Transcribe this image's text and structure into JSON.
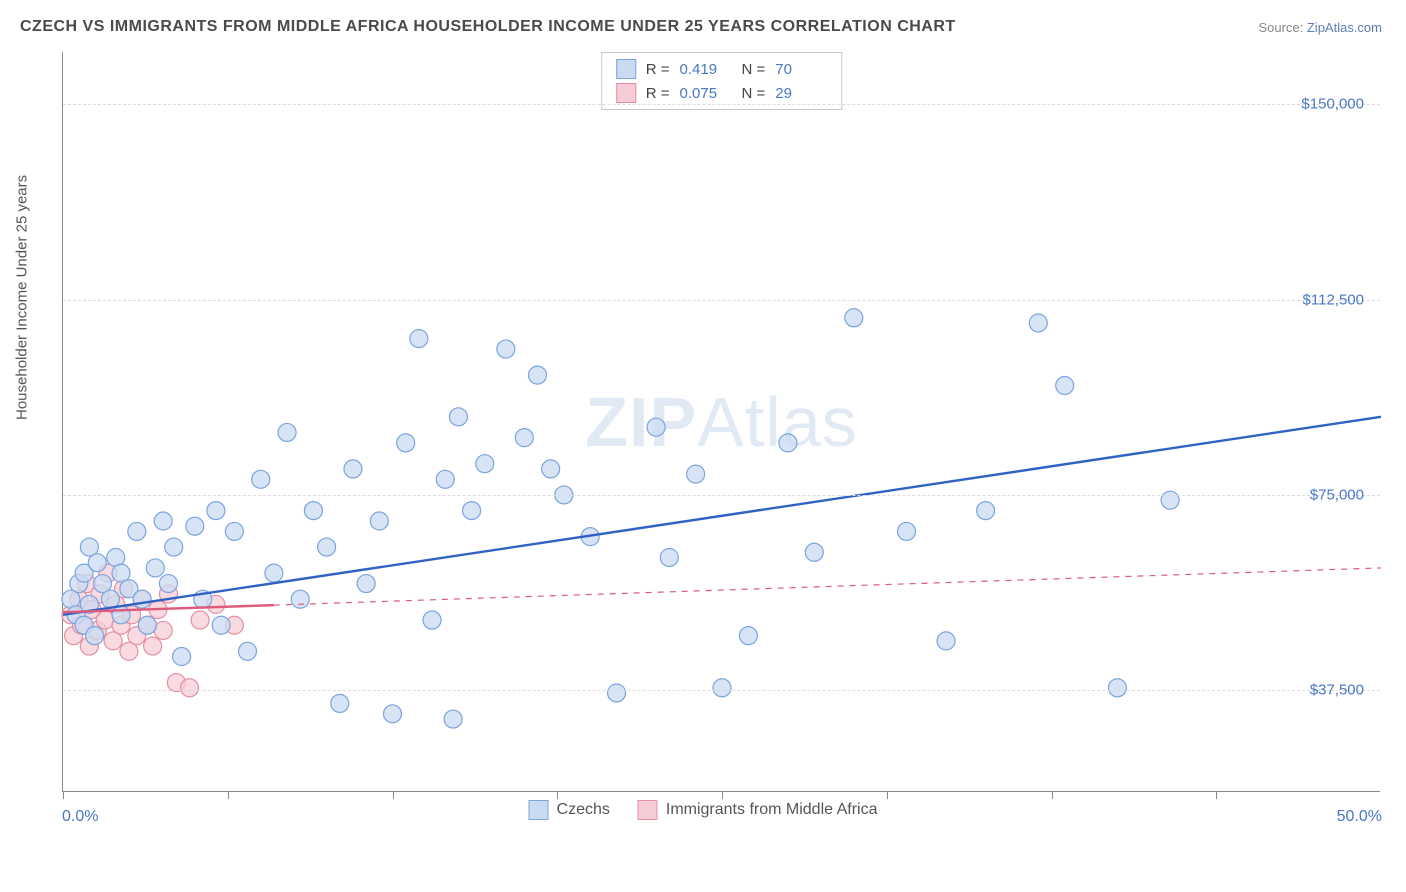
{
  "title": "CZECH VS IMMIGRANTS FROM MIDDLE AFRICA HOUSEHOLDER INCOME UNDER 25 YEARS CORRELATION CHART",
  "source_prefix": "Source: ",
  "source_name": "ZipAtlas.com",
  "watermark_a": "ZIP",
  "watermark_b": "Atlas",
  "yaxis_label": "Householder Income Under 25 years",
  "chart": {
    "type": "scatter",
    "background_color": "#ffffff",
    "grid_color": "#dcdcdc",
    "xlim": [
      0,
      50
    ],
    "ylim": [
      18000,
      160000
    ],
    "xtick_positions": [
      0,
      6.25,
      12.5,
      18.75,
      25,
      31.25,
      37.5,
      43.75
    ],
    "xlabel_min": "0.0%",
    "xlabel_max": "50.0%",
    "yticks": [
      {
        "v": 37500,
        "label": "$37,500"
      },
      {
        "v": 75000,
        "label": "$75,000"
      },
      {
        "v": 112500,
        "label": "$112,500"
      },
      {
        "v": 150000,
        "label": "$150,000"
      }
    ],
    "marker_radius": 9,
    "marker_stroke_width": 1.2,
    "trend_line_width": 2.4,
    "series": [
      {
        "name": "Czechs",
        "fill": "#c9dbf3",
        "stroke": "#7ba4dd",
        "line_color": "#2f62c4",
        "r_label": "R =",
        "r_value": "0.419",
        "n_label": "N =",
        "n_value": "70",
        "trend": {
          "x1": 0,
          "y1": 52000,
          "x2": 50,
          "y2": 90000,
          "solid_until_x": 50
        },
        "points": [
          [
            0.3,
            55000
          ],
          [
            0.5,
            52000
          ],
          [
            0.6,
            58000
          ],
          [
            0.8,
            50000
          ],
          [
            0.8,
            60000
          ],
          [
            1.0,
            65000
          ],
          [
            1.0,
            54000
          ],
          [
            1.2,
            48000
          ],
          [
            1.3,
            62000
          ],
          [
            1.5,
            58000
          ],
          [
            1.8,
            55000
          ],
          [
            2.0,
            63000
          ],
          [
            2.2,
            52000
          ],
          [
            2.2,
            60000
          ],
          [
            2.5,
            57000
          ],
          [
            2.8,
            68000
          ],
          [
            3.0,
            55000
          ],
          [
            3.2,
            50000
          ],
          [
            3.5,
            61000
          ],
          [
            3.8,
            70000
          ],
          [
            4.0,
            58000
          ],
          [
            4.2,
            65000
          ],
          [
            4.5,
            44000
          ],
          [
            5.0,
            69000
          ],
          [
            5.3,
            55000
          ],
          [
            5.8,
            72000
          ],
          [
            6.0,
            50000
          ],
          [
            6.5,
            68000
          ],
          [
            7.0,
            45000
          ],
          [
            7.5,
            78000
          ],
          [
            8.0,
            60000
          ],
          [
            8.5,
            87000
          ],
          [
            9.0,
            55000
          ],
          [
            9.5,
            72000
          ],
          [
            10.0,
            65000
          ],
          [
            10.5,
            35000
          ],
          [
            11.0,
            80000
          ],
          [
            11.5,
            58000
          ],
          [
            12.0,
            70000
          ],
          [
            12.5,
            33000
          ],
          [
            13.0,
            85000
          ],
          [
            13.5,
            105000
          ],
          [
            14.0,
            51000
          ],
          [
            14.5,
            78000
          ],
          [
            14.8,
            32000
          ],
          [
            15.0,
            90000
          ],
          [
            15.5,
            72000
          ],
          [
            16.0,
            81000
          ],
          [
            16.8,
            103000
          ],
          [
            17.5,
            86000
          ],
          [
            18.0,
            98000
          ],
          [
            18.5,
            80000
          ],
          [
            19.0,
            75000
          ],
          [
            20.0,
            67000
          ],
          [
            21.0,
            37000
          ],
          [
            22.5,
            88000
          ],
          [
            23.0,
            63000
          ],
          [
            24.0,
            79000
          ],
          [
            25.0,
            38000
          ],
          [
            26.0,
            48000
          ],
          [
            27.5,
            85000
          ],
          [
            28.5,
            64000
          ],
          [
            30.0,
            109000
          ],
          [
            32.0,
            68000
          ],
          [
            33.5,
            47000
          ],
          [
            35.0,
            72000
          ],
          [
            37.0,
            108000
          ],
          [
            38.0,
            96000
          ],
          [
            40.0,
            38000
          ],
          [
            42.0,
            74000
          ]
        ]
      },
      {
        "name": "Immigrants from Middle Africa",
        "fill": "#f6cdd6",
        "stroke": "#e58fa4",
        "line_color": "#dd5a7c",
        "r_label": "R =",
        "r_value": "0.075",
        "n_label": "N =",
        "n_value": "29",
        "trend": {
          "x1": 0,
          "y1": 52500,
          "x2": 50,
          "y2": 61000,
          "solid_until_x": 8
        },
        "points": [
          [
            0.3,
            52000
          ],
          [
            0.4,
            48000
          ],
          [
            0.6,
            55000
          ],
          [
            0.7,
            50000
          ],
          [
            0.9,
            58000
          ],
          [
            1.0,
            46000
          ],
          [
            1.1,
            53000
          ],
          [
            1.3,
            49000
          ],
          [
            1.4,
            56000
          ],
          [
            1.6,
            51000
          ],
          [
            1.7,
            60000
          ],
          [
            1.9,
            47000
          ],
          [
            2.0,
            54000
          ],
          [
            2.2,
            50000
          ],
          [
            2.3,
            57000
          ],
          [
            2.5,
            45000
          ],
          [
            2.6,
            52000
          ],
          [
            2.8,
            48000
          ],
          [
            3.0,
            55000
          ],
          [
            3.2,
            50000
          ],
          [
            3.4,
            46000
          ],
          [
            3.6,
            53000
          ],
          [
            3.8,
            49000
          ],
          [
            4.0,
            56000
          ],
          [
            4.3,
            39000
          ],
          [
            4.8,
            38000
          ],
          [
            5.2,
            51000
          ],
          [
            5.8,
            54000
          ],
          [
            6.5,
            50000
          ]
        ]
      }
    ]
  },
  "legend_bottom": [
    {
      "label": "Czechs",
      "fill": "#c9dbf3",
      "stroke": "#7ba4dd"
    },
    {
      "label": "Immigrants from Middle Africa",
      "fill": "#f6cdd6",
      "stroke": "#e58fa4"
    }
  ]
}
